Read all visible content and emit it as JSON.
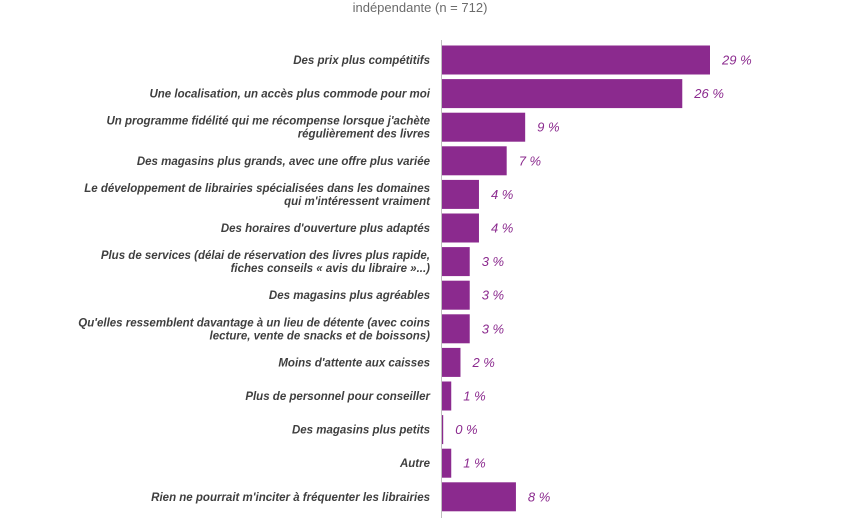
{
  "chart_data": {
    "type": "bar",
    "orientation": "horizontal",
    "subtitle": "indépendante (n = 712)",
    "bar_color": "#8b2a8e",
    "value_suffix": " %",
    "categories": [
      [
        "Des prix plus compétitifs"
      ],
      [
        "Une localisation, un accès plus commode pour moi"
      ],
      [
        "Un programme fidélité qui me récompense lorsque j'achète",
        "régulièrement des livres"
      ],
      [
        "Des magasins plus grands, avec une offre plus variée"
      ],
      [
        "Le développement de librairies spécialisées dans les domaines",
        "qui m'intéressent vraiment"
      ],
      [
        "Des horaires d'ouverture plus adaptés"
      ],
      [
        "Plus de services (délai de réservation des livres plus rapide,",
        "fiches conseils « avis du libraire »...)"
      ],
      [
        "Des magasins plus agréables"
      ],
      [
        "Qu'elles ressemblent davantage à un lieu de détente (avec coins",
        "lecture, vente de snacks et de boissons)"
      ],
      [
        "Moins d'attente aux caisses"
      ],
      [
        "Plus de personnel pour conseiller"
      ],
      [
        "Des magasins plus petits"
      ],
      [
        "Autre"
      ],
      [
        "Rien ne pourrait m'inciter à fréquenter les librairies"
      ]
    ],
    "values": [
      29,
      26,
      9,
      7,
      4,
      4,
      3,
      3,
      3,
      2,
      1,
      0,
      1,
      8
    ],
    "value_labels": [
      "29 %",
      "26 %",
      "9 %",
      "7 %",
      "4 %",
      "4 %",
      "3 %",
      "3 %",
      "3 %",
      "2 %",
      "1 %",
      "0 %",
      "1 %",
      "8 %"
    ],
    "xlim": [
      0,
      29
    ]
  }
}
